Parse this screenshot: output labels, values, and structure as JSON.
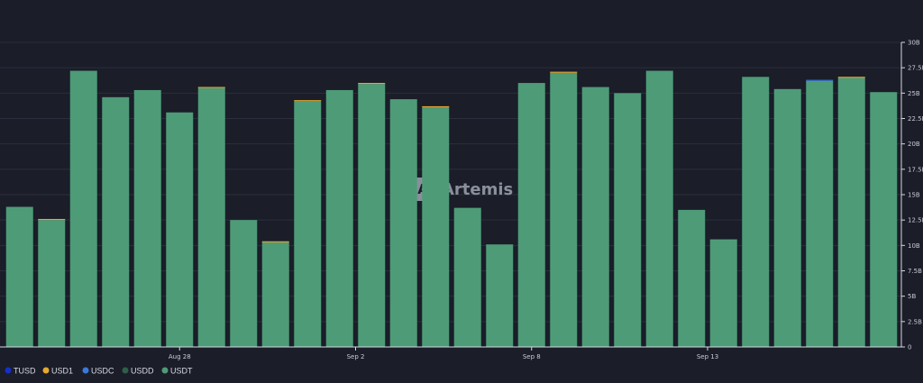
{
  "chart_data": {
    "type": "bar",
    "stacked": true,
    "y_ticks": [
      "30B",
      "27.5B",
      "25B",
      "22.5B",
      "20B",
      "17.5B",
      "15B",
      "12.5B",
      "10B",
      "7.5B",
      "5B",
      "2.5B",
      "0"
    ],
    "ylim": [
      0,
      30
    ],
    "y_unit": "B",
    "x_tick_labels": [
      {
        "label": "Aug 28",
        "index": 5.5
      },
      {
        "label": "Sep 2",
        "index": 11
      },
      {
        "label": "Sep 8",
        "index": 16.5
      },
      {
        "label": "Sep 13",
        "index": 22
      }
    ],
    "bar_count": 28,
    "series": [
      {
        "name": "TUSD",
        "color": "#1530c8",
        "values": [
          0,
          0,
          0,
          0,
          0,
          0,
          0,
          0,
          0,
          0,
          0,
          0,
          0,
          0,
          0,
          0,
          0,
          0,
          0,
          0,
          0,
          0,
          0,
          0,
          0,
          0,
          0,
          0
        ]
      },
      {
        "name": "USD1",
        "color": "#e5a930",
        "values": [
          0,
          0.1,
          0,
          0,
          0,
          0,
          0.1,
          0,
          0.1,
          0.1,
          0,
          0.1,
          0,
          0.1,
          0,
          0,
          0,
          0.1,
          0,
          0,
          0,
          0,
          0,
          0,
          0,
          0,
          0.1,
          0
        ]
      },
      {
        "name": "USDC",
        "color": "#3c78d8",
        "values": [
          0,
          0,
          0,
          0,
          0,
          0,
          0,
          0,
          0,
          0,
          0,
          0,
          0,
          0,
          0,
          0,
          0,
          0,
          0,
          0,
          0,
          0,
          0,
          0,
          0,
          0.1,
          0,
          0
        ]
      },
      {
        "name": "USDD",
        "color": "#2f5e49",
        "values": [
          0,
          0,
          0,
          0,
          0,
          0,
          0,
          0,
          0,
          0,
          0,
          0,
          0,
          0,
          0,
          0,
          0,
          0,
          0,
          0,
          0,
          0,
          0,
          0,
          0,
          0,
          0,
          0
        ]
      },
      {
        "name": "USDT",
        "color": "#4e9b78",
        "values": [
          13.8,
          12.5,
          27.2,
          24.6,
          25.3,
          23.1,
          25.5,
          12.5,
          10.3,
          24.2,
          25.3,
          25.9,
          24.4,
          23.6,
          13.7,
          10.1,
          26.0,
          27.0,
          25.6,
          25.0,
          27.2,
          13.5,
          10.6,
          26.6,
          25.4,
          26.2,
          26.5,
          25.1
        ]
      }
    ],
    "legend_position": "bottom-left",
    "grid": true
  },
  "watermark": {
    "text": "Artemis"
  }
}
